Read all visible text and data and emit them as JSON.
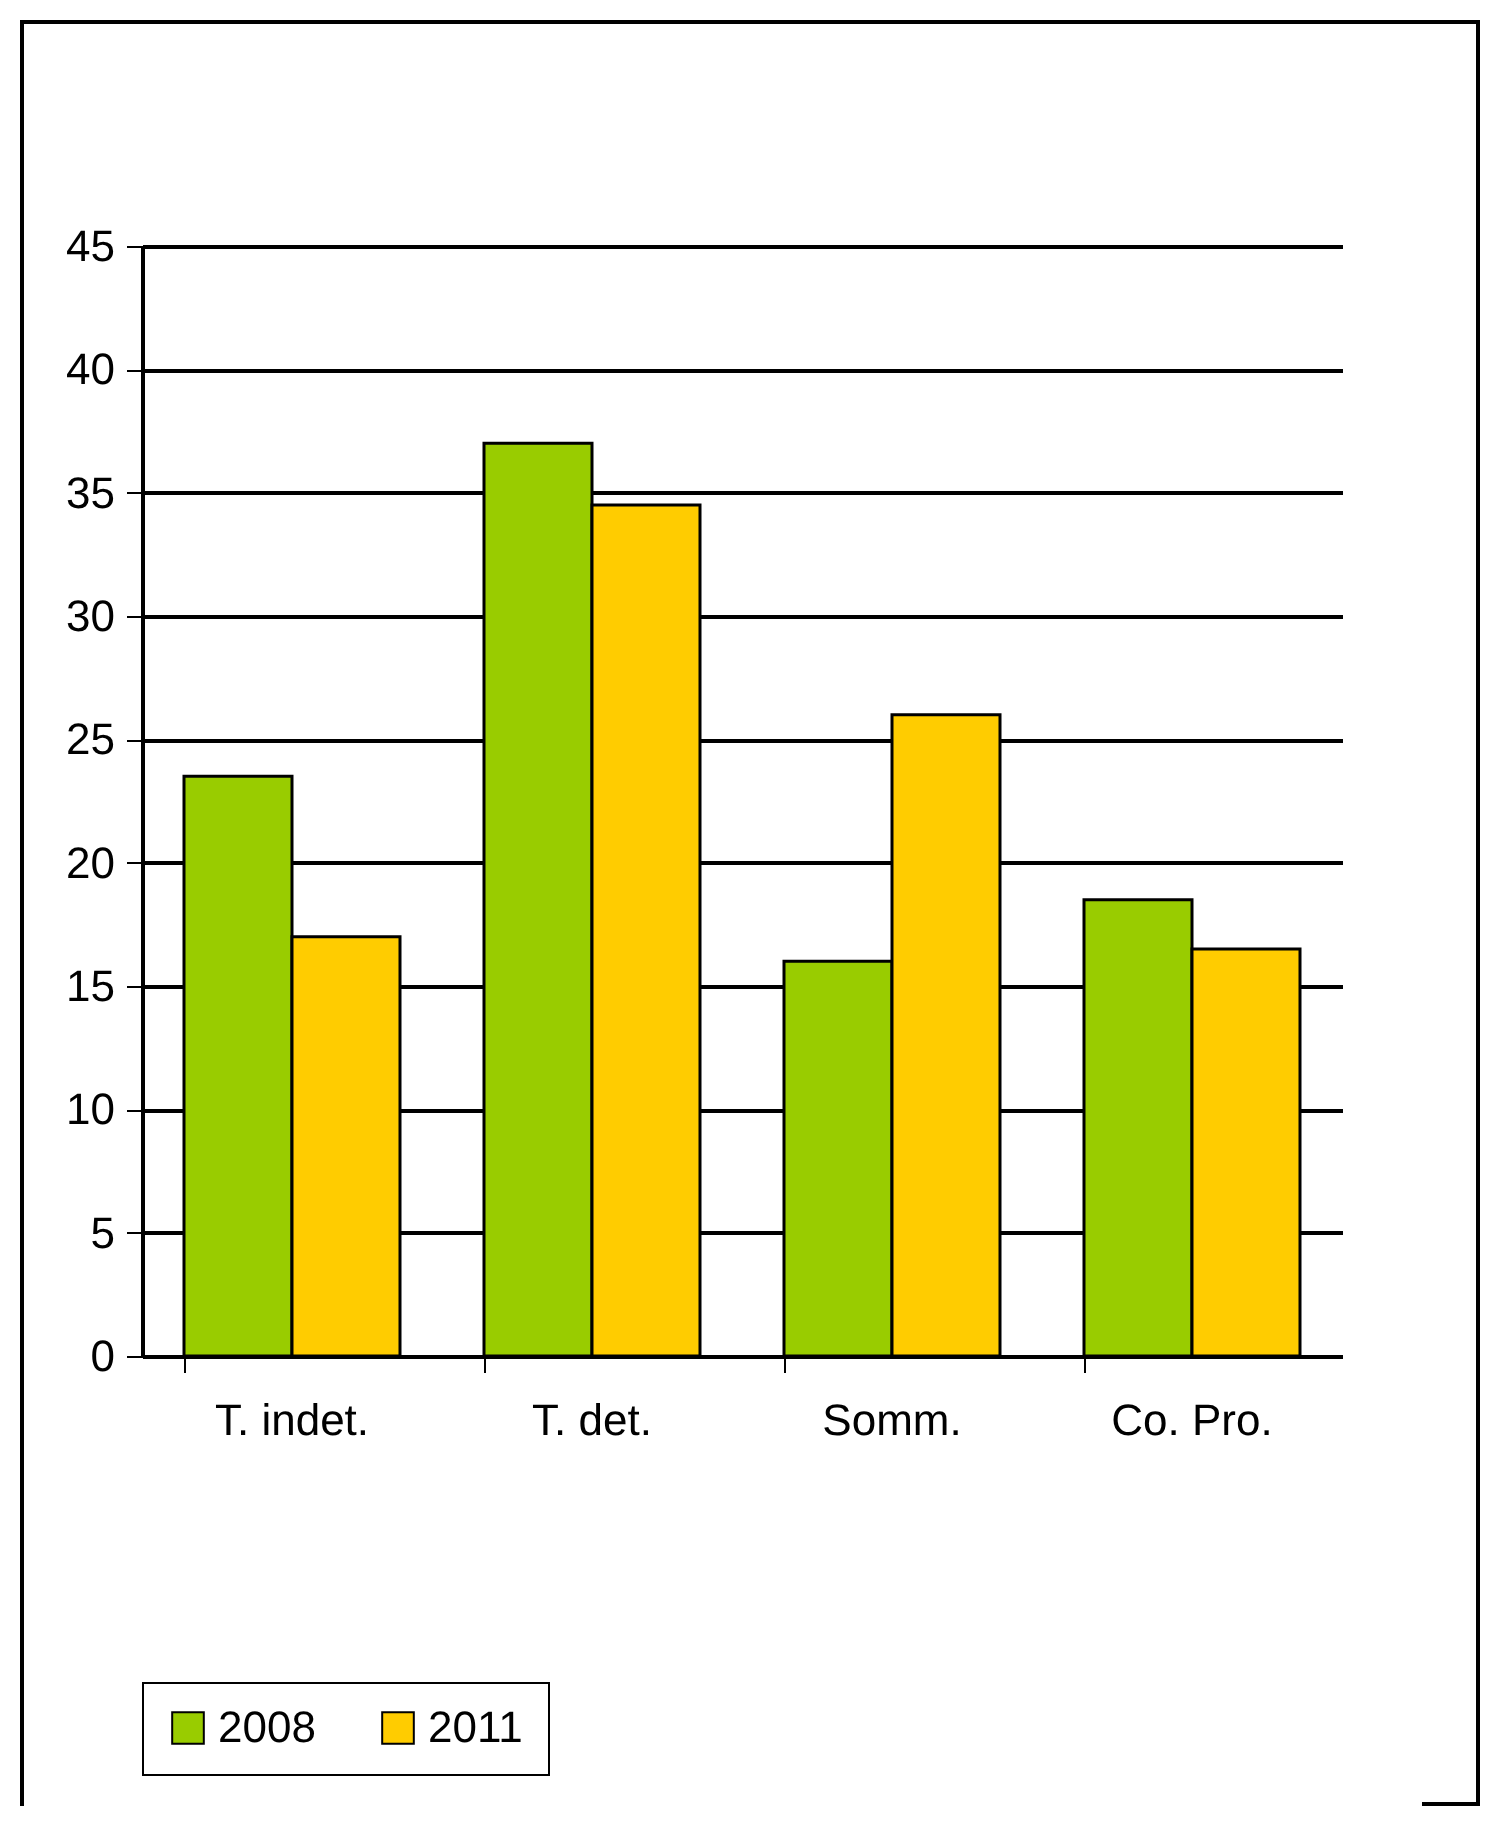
{
  "chart_data": {
    "type": "bar",
    "categories": [
      "T. indet.",
      "T. det.",
      "Somm.",
      "Co. Pro."
    ],
    "series": [
      {
        "name": "2008",
        "color": "#99cc00",
        "values": [
          23.5,
          37,
          16,
          18.5
        ]
      },
      {
        "name": "2011",
        "color": "#ffcc00",
        "values": [
          17,
          34.5,
          26,
          16.5
        ]
      }
    ],
    "ylim": [
      0,
      45
    ],
    "yticks": [
      0,
      5,
      10,
      15,
      20,
      25,
      30,
      35,
      40,
      45
    ],
    "grid": "y",
    "legend": "bottom"
  }
}
